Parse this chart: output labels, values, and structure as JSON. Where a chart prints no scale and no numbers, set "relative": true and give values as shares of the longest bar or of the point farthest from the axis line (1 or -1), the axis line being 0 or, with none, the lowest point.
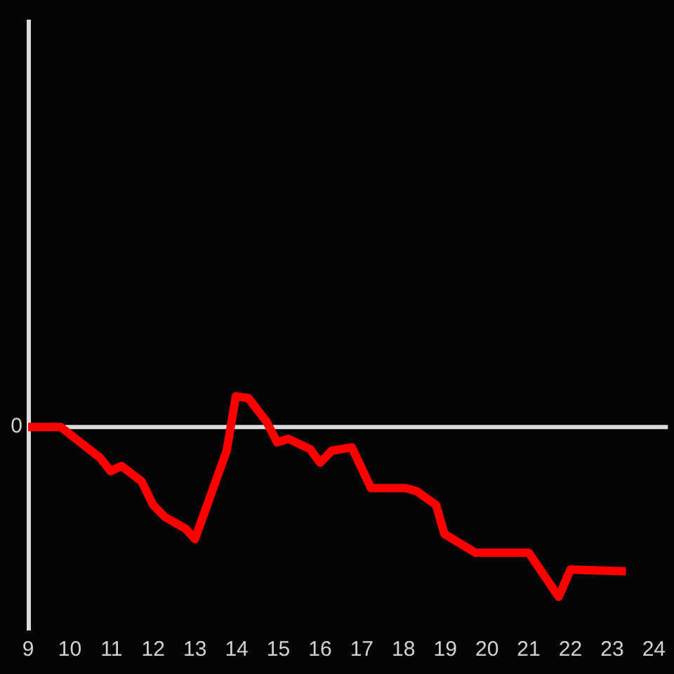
{
  "chart_data": {
    "type": "line",
    "relative": true,
    "x": [
      9,
      9.78,
      10.72,
      10.98,
      11.24,
      11.72,
      12.0,
      12.28,
      12.78,
      13.0,
      13.76,
      13.98,
      14.28,
      14.72,
      14.97,
      15.24,
      15.76,
      16.0,
      16.28,
      16.76,
      17.22,
      18.06,
      18.33,
      18.78,
      18.98,
      19.72,
      21.0,
      21.72,
      22.0,
      23.33
    ],
    "series": [
      {
        "color": "#ff0000",
        "values": [
          0,
          0,
          -0.18,
          -0.26,
          -0.23,
          -0.32,
          -0.46,
          -0.53,
          -0.6,
          -0.66,
          -0.14,
          0.18,
          0.17,
          0.03,
          -0.09,
          -0.07,
          -0.13,
          -0.21,
          -0.14,
          -0.12,
          -0.36,
          -0.36,
          -0.38,
          -0.46,
          -0.63,
          -0.74,
          -0.74,
          -1,
          -0.84,
          -0.85
        ]
      }
    ],
    "xlim": [
      9,
      24
    ],
    "xticks": [
      9,
      10,
      11,
      12,
      13,
      14,
      15,
      16,
      17,
      18,
      19,
      20,
      21,
      22,
      23,
      24
    ],
    "ref_lines": [
      {
        "axis": "y",
        "value": 0,
        "label": "0",
        "color": "#dcdcdc"
      }
    ],
    "marker": "none",
    "line_style": "solid"
  }
}
